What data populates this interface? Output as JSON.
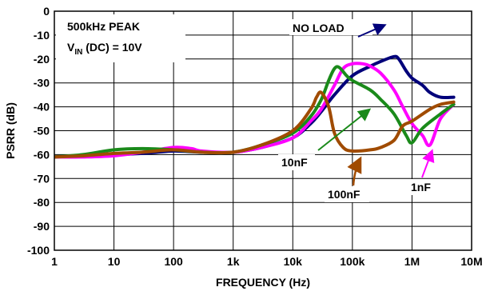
{
  "chart_data": {
    "type": "line",
    "xlabel": "FREQUENCY (Hz)",
    "ylabel": "PSRR (dB)",
    "x_scale": "log",
    "xlim": [
      1,
      10000000
    ],
    "ylim": [
      -100,
      0
    ],
    "grid": true,
    "x_tick_labels": [
      "1",
      "10",
      "100",
      "1k",
      "10k",
      "100k",
      "1M",
      "10M"
    ],
    "y_tick_labels": [
      "0",
      "-10",
      "-20",
      "-30",
      "-40",
      "-50",
      "-60",
      "-70",
      "-80",
      "-90",
      "-100"
    ],
    "annotations": {
      "condition_line1": "500kHz PEAK",
      "condition_line2_prefix": "V",
      "condition_line2_sub": "IN",
      "condition_line2_suffix": " (DC) = 10V",
      "no_load": "NO LOAD",
      "c10n": "10nF",
      "c100n": "100nF",
      "c1n": "1nF"
    },
    "series": [
      {
        "name": "NO LOAD",
        "color": "#00007a",
        "x": [
          1,
          3,
          10,
          30,
          100,
          300,
          1000,
          3000,
          10000,
          20000,
          30000,
          50000,
          100000,
          200000,
          300000,
          500000,
          600000,
          800000,
          1000000,
          1500000,
          2000000,
          3000000,
          5000000
        ],
        "y": [
          -61,
          -60.5,
          -60,
          -59.5,
          -58.5,
          -59,
          -59,
          -57,
          -53,
          -47,
          -42,
          -35,
          -27,
          -23,
          -21,
          -19,
          -20,
          -25,
          -28,
          -31,
          -34,
          -36,
          -36
        ]
      },
      {
        "name": "1nF",
        "color": "#ff00ff",
        "x": [
          1,
          3,
          10,
          30,
          100,
          200,
          300,
          1000,
          3000,
          10000,
          20000,
          30000,
          50000,
          70000,
          100000,
          150000,
          200000,
          300000,
          500000,
          700000,
          1000000,
          1500000,
          2000000,
          3000000,
          5000000
        ],
        "y": [
          -61,
          -61,
          -60.5,
          -59,
          -57,
          -57.5,
          -58.5,
          -59,
          -57,
          -53,
          -46,
          -41,
          -31,
          -24,
          -22,
          -22,
          -23,
          -26,
          -33,
          -40,
          -47,
          -52,
          -56,
          -45,
          -39
        ]
      },
      {
        "name": "10nF",
        "color": "#1a8a1a",
        "x": [
          1,
          3,
          10,
          30,
          100,
          300,
          1000,
          3000,
          10000,
          20000,
          30000,
          40000,
          50000,
          60000,
          80000,
          100000,
          200000,
          300000,
          500000,
          800000,
          1000000,
          1500000,
          3000000,
          5000000
        ],
        "y": [
          -61,
          -60,
          -58,
          -57.5,
          -58,
          -59,
          -59,
          -56,
          -51,
          -44,
          -37,
          -29,
          -24,
          -23.5,
          -27,
          -29,
          -33,
          -37,
          -43,
          -52,
          -55,
          -49,
          -43,
          -39
        ]
      },
      {
        "name": "100nF",
        "color": "#a04b00",
        "x": [
          1,
          3,
          10,
          30,
          100,
          300,
          1000,
          3000,
          10000,
          20000,
          25000,
          30000,
          40000,
          50000,
          70000,
          100000,
          200000,
          300000,
          500000,
          700000,
          1000000,
          2000000,
          3000000,
          5000000
        ],
        "y": [
          -61,
          -60.5,
          -59.5,
          -59,
          -58,
          -59,
          -59,
          -56,
          -50,
          -41,
          -36,
          -34,
          -40,
          -51,
          -57,
          -58.5,
          -58,
          -57,
          -54,
          -48,
          -46,
          -41,
          -39,
          -38
        ]
      }
    ]
  }
}
